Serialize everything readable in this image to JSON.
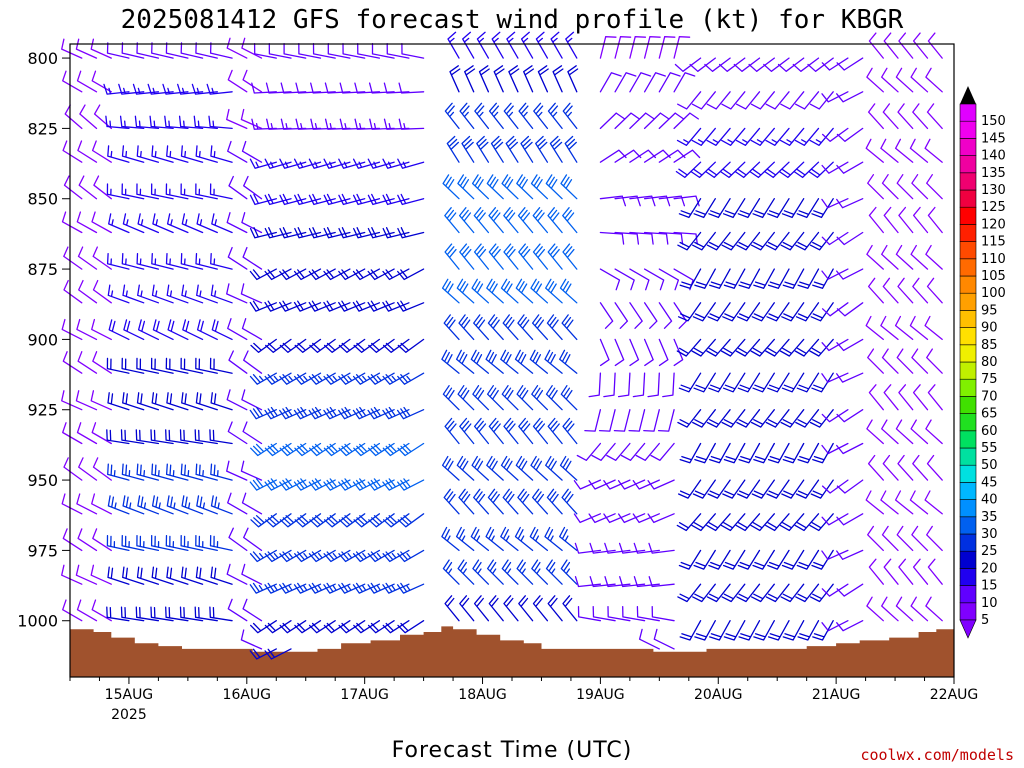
{
  "title": "2025081412 GFS forecast wind profile (kt) for KBGR",
  "credit": "coolwx.com/models",
  "chart_data": {
    "type": "wind-barb-profile",
    "title": "2025081412 GFS forecast wind profile (kt) for KBGR",
    "xlabel": "Forecast Time (UTC)",
    "ylabel": "",
    "x_ticks": [
      {
        "label": "15AUG",
        "sub": "2025",
        "day": 15
      },
      {
        "label": "16AUG",
        "sub": "",
        "day": 16
      },
      {
        "label": "17AUG",
        "sub": "",
        "day": 17
      },
      {
        "label": "18AUG",
        "sub": "",
        "day": 18
      },
      {
        "label": "19AUG",
        "sub": "",
        "day": 19
      },
      {
        "label": "20AUG",
        "sub": "",
        "day": 20
      },
      {
        "label": "21AUG",
        "sub": "",
        "day": 21
      },
      {
        "label": "22AUG",
        "sub": "",
        "day": 22
      }
    ],
    "x_range_days": [
      14.5,
      22.0
    ],
    "y_ticks": [
      800,
      825,
      850,
      875,
      900,
      925,
      950,
      975,
      1000
    ],
    "y_range_hpa": [
      795,
      1020
    ],
    "y_reversed": true,
    "colorbar": {
      "levels": [
        5,
        10,
        15,
        20,
        25,
        30,
        35,
        40,
        45,
        50,
        55,
        60,
        65,
        70,
        75,
        80,
        85,
        90,
        95,
        100,
        105,
        110,
        115,
        120,
        125,
        130,
        135,
        140,
        145,
        150
      ],
      "colors": [
        "#8000ff",
        "#6000ff",
        "#2000f0",
        "#0000d0",
        "#0030e0",
        "#0060f0",
        "#0090ff",
        "#00b8ff",
        "#00e0e0",
        "#00e0a0",
        "#00e060",
        "#20e020",
        "#40e000",
        "#80f000",
        "#c0f000",
        "#f0f000",
        "#ffe000",
        "#ffc000",
        "#ffa000",
        "#ff8800",
        "#ff6a00",
        "#ff4a00",
        "#ff2000",
        "#ff0000",
        "#f00040",
        "#f00070",
        "#f000a0",
        "#f000c8",
        "#f000f0",
        "#e000ff"
      ]
    },
    "surface_pressure": [
      {
        "day": 14.5,
        "p": 1003
      },
      {
        "day": 14.7,
        "p": 1004
      },
      {
        "day": 14.85,
        "p": 1006
      },
      {
        "day": 15.05,
        "p": 1008
      },
      {
        "day": 15.25,
        "p": 1009
      },
      {
        "day": 15.45,
        "p": 1010
      },
      {
        "day": 15.7,
        "p": 1010
      },
      {
        "day": 15.9,
        "p": 1010
      },
      {
        "day": 16.05,
        "p": 1011
      },
      {
        "day": 16.4,
        "p": 1011
      },
      {
        "day": 16.6,
        "p": 1010
      },
      {
        "day": 16.8,
        "p": 1008
      },
      {
        "day": 17.05,
        "p": 1007
      },
      {
        "day": 17.3,
        "p": 1005
      },
      {
        "day": 17.5,
        "p": 1004
      },
      {
        "day": 17.65,
        "p": 1002
      },
      {
        "day": 17.75,
        "p": 1003
      },
      {
        "day": 17.95,
        "p": 1005
      },
      {
        "day": 18.15,
        "p": 1007
      },
      {
        "day": 18.35,
        "p": 1008
      },
      {
        "day": 18.5,
        "p": 1010
      },
      {
        "day": 18.8,
        "p": 1010
      },
      {
        "day": 19.0,
        "p": 1010
      },
      {
        "day": 19.25,
        "p": 1010
      },
      {
        "day": 19.45,
        "p": 1011
      },
      {
        "day": 19.7,
        "p": 1011
      },
      {
        "day": 19.9,
        "p": 1010
      },
      {
        "day": 20.15,
        "p": 1010
      },
      {
        "day": 20.45,
        "p": 1010
      },
      {
        "day": 20.75,
        "p": 1009
      },
      {
        "day": 21.0,
        "p": 1008
      },
      {
        "day": 21.2,
        "p": 1007
      },
      {
        "day": 21.45,
        "p": 1006
      },
      {
        "day": 21.7,
        "p": 1004
      },
      {
        "day": 21.85,
        "p": 1003
      },
      {
        "day": 22.0,
        "p": 1004
      }
    ],
    "phases": [
      {
        "start": 14.6,
        "end": 14.9,
        "spd": [
          8,
          8,
          8,
          8,
          8,
          8,
          8,
          8,
          8,
          8,
          8,
          8,
          8,
          8,
          8,
          8,
          8,
          8,
          8,
          8
        ],
        "dir": [
          300,
          300,
          305,
          305,
          305,
          305,
          305,
          300,
          300,
          300,
          300,
          300,
          300,
          300,
          300,
          300,
          300,
          300,
          300,
          300
        ]
      },
      {
        "start": 15.0,
        "end": 15.9,
        "spd": [
          10,
          15,
          15,
          15,
          15,
          15,
          15,
          15,
          18,
          20,
          22,
          22,
          25,
          25,
          25,
          22,
          20,
          20,
          18,
          15
        ],
        "dir": [
          280,
          270,
          275,
          280,
          285,
          290,
          290,
          290,
          290,
          285,
          285,
          285,
          285,
          285,
          285,
          285,
          285,
          285,
          285,
          285
        ]
      },
      {
        "start": 16.0,
        "end": 16.2,
        "spd": [
          8,
          8,
          8,
          10,
          10,
          10,
          12,
          12,
          12,
          12,
          12,
          12,
          12,
          12,
          12,
          12,
          10,
          10,
          10,
          10
        ],
        "dir": [
          300,
          300,
          300,
          300,
          300,
          300,
          300,
          300,
          300,
          300,
          300,
          300,
          300,
          300,
          300,
          300,
          300,
          300,
          300,
          300
        ]
      },
      {
        "start": 16.25,
        "end": 17.6,
        "spd": [
          10,
          12,
          14,
          15,
          18,
          20,
          20,
          22,
          22,
          25,
          28,
          30,
          30,
          28,
          25,
          25,
          22,
          20,
          18,
          15
        ],
        "dir": [
          275,
          270,
          265,
          260,
          255,
          250,
          245,
          245,
          240,
          240,
          240,
          240,
          240,
          240,
          240,
          240,
          240,
          240,
          240,
          240
        ]
      },
      {
        "start": 17.8,
        "end": 18.85,
        "spd": [
          15,
          20,
          25,
          28,
          30,
          30,
          32,
          30,
          28,
          28,
          28,
          28,
          28,
          28,
          25,
          25,
          22,
          22,
          20,
          18
        ],
        "dir": [
          330,
          330,
          325,
          325,
          320,
          320,
          315,
          315,
          315,
          315,
          315,
          315,
          315,
          315,
          315,
          315,
          315,
          315,
          315,
          315
        ]
      },
      {
        "start": 19.0,
        "end": 19.7,
        "spd": [
          8,
          10,
          10,
          10,
          10,
          12,
          12,
          12,
          12,
          12,
          12,
          12,
          12,
          12,
          12,
          12,
          12,
          12,
          12,
          10
        ],
        "dir": [
          20,
          30,
          40,
          60,
          80,
          100,
          120,
          140,
          160,
          180,
          200,
          220,
          240,
          250,
          260,
          270,
          280,
          290,
          300,
          310
        ]
      },
      {
        "start": 19.85,
        "end": 21.0,
        "spd": [
          10,
          12,
          15,
          18,
          20,
          22,
          22,
          22,
          22,
          22,
          22,
          22,
          22,
          22,
          22,
          20,
          20,
          20,
          18,
          15
        ],
        "dir": [
          230,
          225,
          220,
          220,
          215,
          215,
          215,
          215,
          215,
          215,
          215,
          215,
          215,
          215,
          215,
          215,
          215,
          215,
          215,
          215
        ]
      },
      {
        "start": 21.1,
        "end": 21.3,
        "spd": [
          10,
          10,
          10,
          12,
          12,
          12,
          12,
          12,
          12,
          12,
          12,
          12,
          12,
          12,
          12,
          10,
          10,
          10,
          10,
          10
        ],
        "dir": [
          240,
          240,
          240,
          240,
          240,
          240,
          240,
          240,
          240,
          240,
          240,
          240,
          240,
          240,
          240,
          240,
          240,
          240,
          240,
          240
        ]
      },
      {
        "start": 21.4,
        "end": 21.95,
        "spd": [
          8,
          8,
          8,
          8,
          8,
          8,
          8,
          8,
          8,
          8,
          8,
          8,
          8,
          8,
          8,
          8,
          8,
          8,
          8,
          8
        ],
        "dir": [
          315,
          315,
          315,
          315,
          315,
          315,
          315,
          315,
          315,
          315,
          315,
          315,
          315,
          315,
          315,
          315,
          315,
          315,
          315,
          315
        ]
      }
    ],
    "barb_levels_hpa": [
      800,
      812,
      825,
      837,
      850,
      862,
      875,
      887,
      900,
      912,
      925,
      937,
      950,
      962,
      975,
      987,
      1000,
      1010,
      1016,
      1020
    ],
    "barb_time_step_days": 0.125
  }
}
